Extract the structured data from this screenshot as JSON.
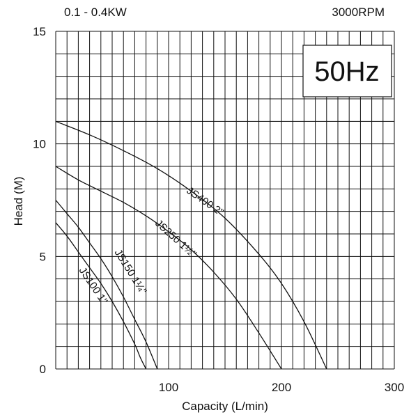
{
  "header": {
    "power_range": "0.1 - 0.4KW",
    "speed": "3000RPM"
  },
  "chart_data": {
    "type": "line",
    "title": "",
    "annotation": "50Hz",
    "xlabel": "Capacity (L/min)",
    "ylabel": "Head  (M)",
    "xlim": [
      0,
      300
    ],
    "ylim": [
      0,
      15
    ],
    "x_ticks": [
      {
        "value": 100,
        "label": "100"
      },
      {
        "value": 200,
        "label": "200"
      },
      {
        "value": 300,
        "label": "300"
      }
    ],
    "y_ticks": [
      {
        "value": 0,
        "label": "0"
      },
      {
        "value": 5,
        "label": "5"
      },
      {
        "value": 10,
        "label": "10"
      },
      {
        "value": 15,
        "label": "15"
      }
    ],
    "grid": true,
    "grid_minor_x": 10,
    "grid_minor_y": 1,
    "series": [
      {
        "name": "JS100 1\"",
        "x": [
          0,
          10,
          20,
          30,
          40,
          50,
          60,
          70,
          75,
          80
        ],
        "y": [
          6.5,
          5.9,
          5.2,
          4.5,
          3.8,
          3.0,
          2.1,
          1.1,
          0.5,
          0
        ]
      },
      {
        "name": "JS150 1¼\"",
        "x": [
          0,
          10,
          20,
          30,
          40,
          50,
          60,
          70,
          80,
          90
        ],
        "y": [
          7.5,
          6.9,
          6.3,
          5.6,
          4.9,
          4.1,
          3.2,
          2.2,
          1.2,
          0
        ]
      },
      {
        "name": "JS250 1½\"",
        "x": [
          0,
          20,
          40,
          60,
          80,
          100,
          120,
          140,
          160,
          180,
          200
        ],
        "y": [
          9.0,
          8.4,
          7.9,
          7.4,
          6.8,
          6.1,
          5.3,
          4.3,
          3.1,
          1.6,
          0
        ]
      },
      {
        "name": "JS400 2\"",
        "x": [
          0,
          30,
          60,
          90,
          120,
          150,
          180,
          200,
          220,
          240
        ],
        "y": [
          11.0,
          10.4,
          9.7,
          8.9,
          7.9,
          6.7,
          5.1,
          3.8,
          2.1,
          0
        ]
      }
    ]
  }
}
